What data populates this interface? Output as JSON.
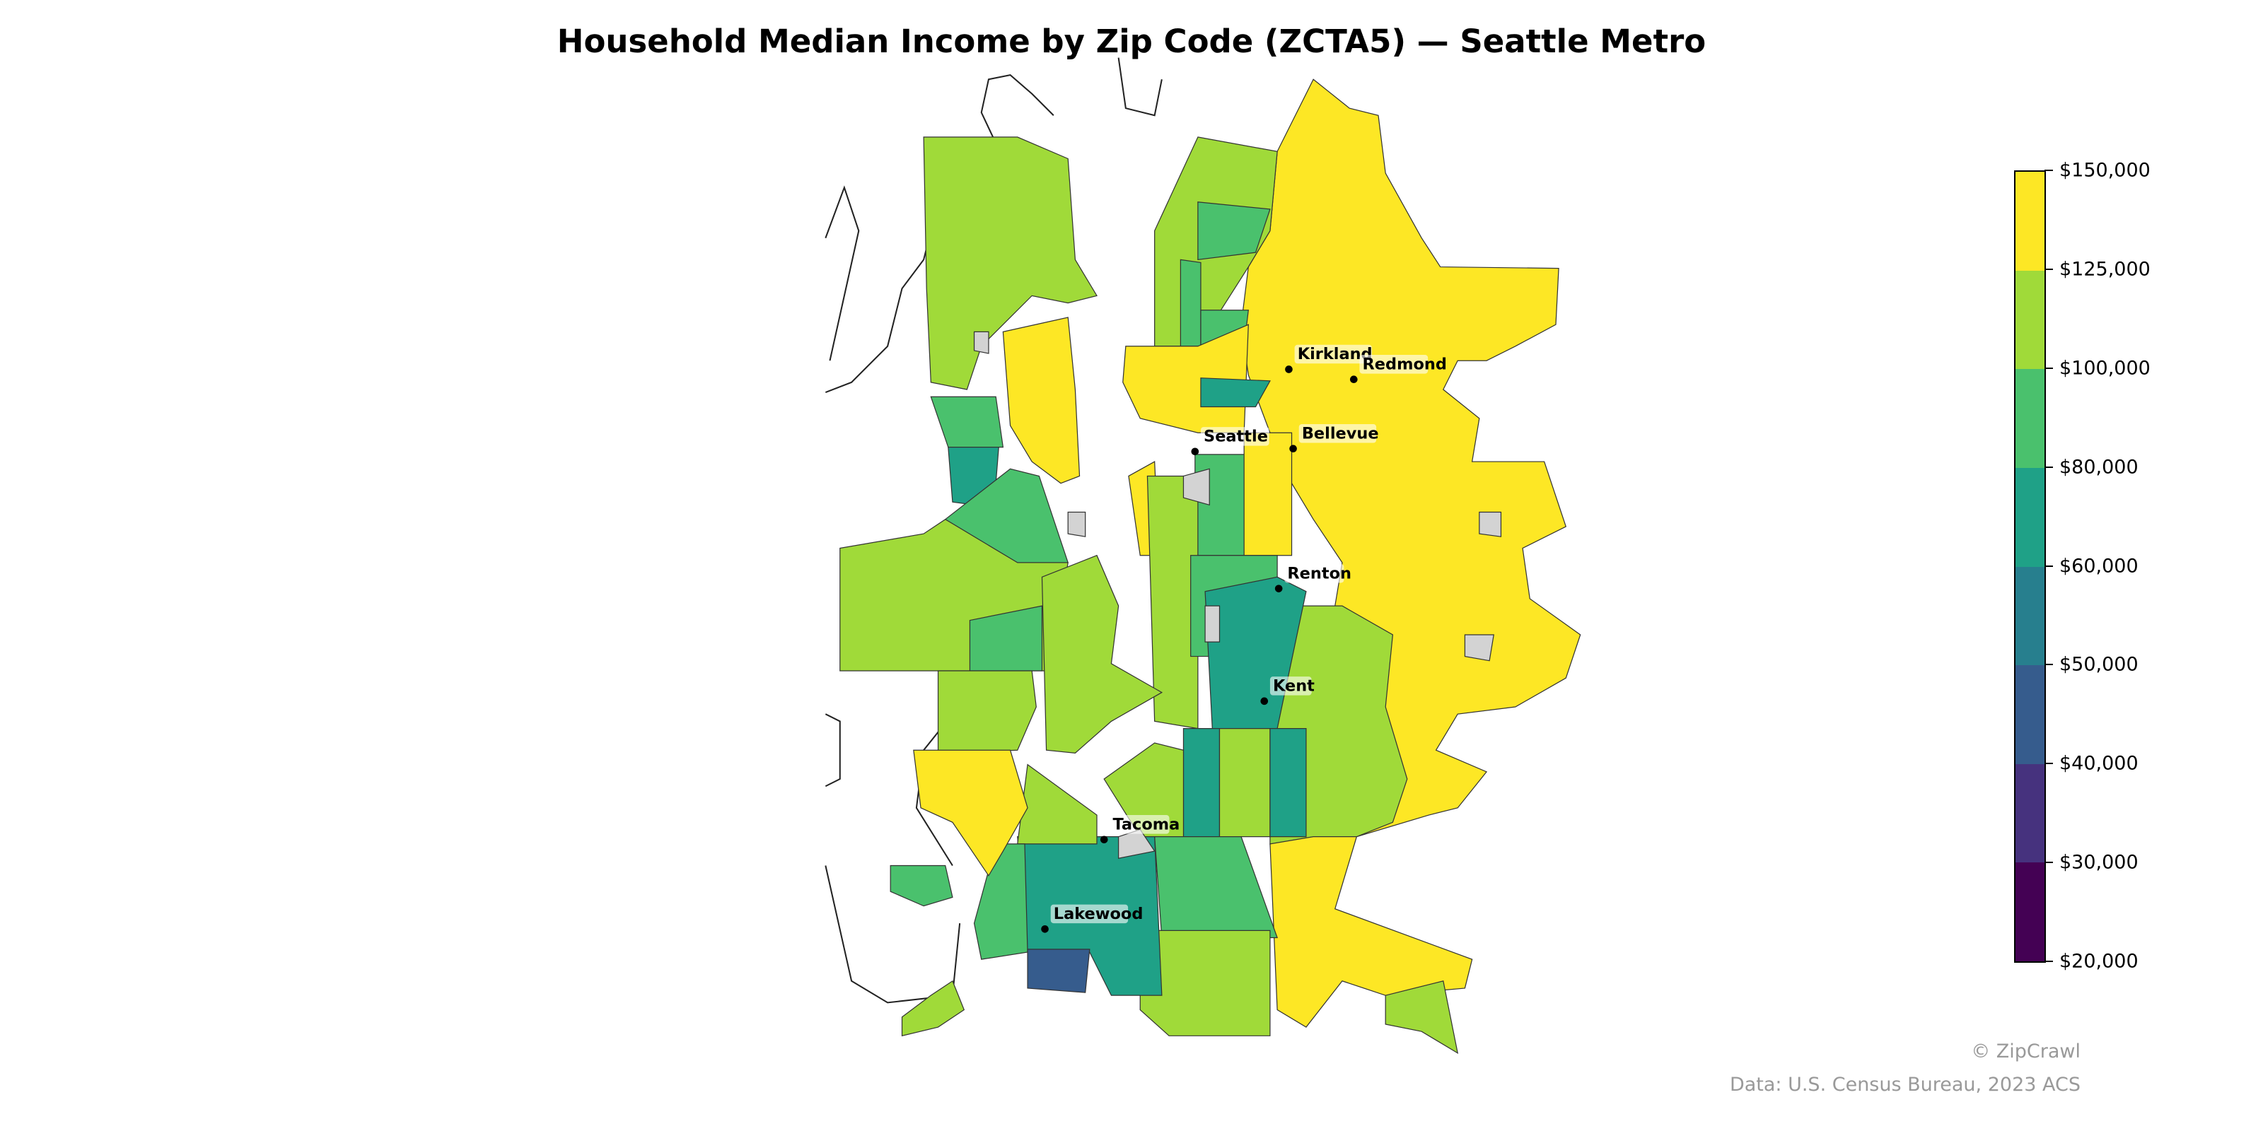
{
  "title": "Household Median Income by Zip Code (ZCTA5) — Seattle Metro",
  "legend": {
    "ticks": [
      "$20,000",
      "$30,000",
      "$40,000",
      "$50,000",
      "$60,000",
      "$80,000",
      "$100,000",
      "$125,000",
      "$150,000"
    ],
    "bins": [
      {
        "range": [
          20000,
          30000
        ],
        "color": "#440154"
      },
      {
        "range": [
          30000,
          40000
        ],
        "color": "#46327e"
      },
      {
        "range": [
          40000,
          50000
        ],
        "color": "#365c8d"
      },
      {
        "range": [
          50000,
          60000
        ],
        "color": "#277f8e"
      },
      {
        "range": [
          60000,
          80000
        ],
        "color": "#1fa187"
      },
      {
        "range": [
          80000,
          100000
        ],
        "color": "#4ac16d"
      },
      {
        "range": [
          100000,
          125000
        ],
        "color": "#a0da39"
      },
      {
        "range": [
          125000,
          150000
        ],
        "color": "#fde725"
      }
    ],
    "no_data_color": "#d3d3d3"
  },
  "cities": [
    {
      "name": "Kirkland"
    },
    {
      "name": "Redmond"
    },
    {
      "name": "Seattle"
    },
    {
      "name": "Bellevue"
    },
    {
      "name": "Renton"
    },
    {
      "name": "Kent"
    },
    {
      "name": "Tacoma"
    },
    {
      "name": "Lakewood"
    }
  ],
  "footer": {
    "credit": "© ZipCrawl",
    "source": "Data: U.S. Census Bureau, 2023 ACS"
  }
}
